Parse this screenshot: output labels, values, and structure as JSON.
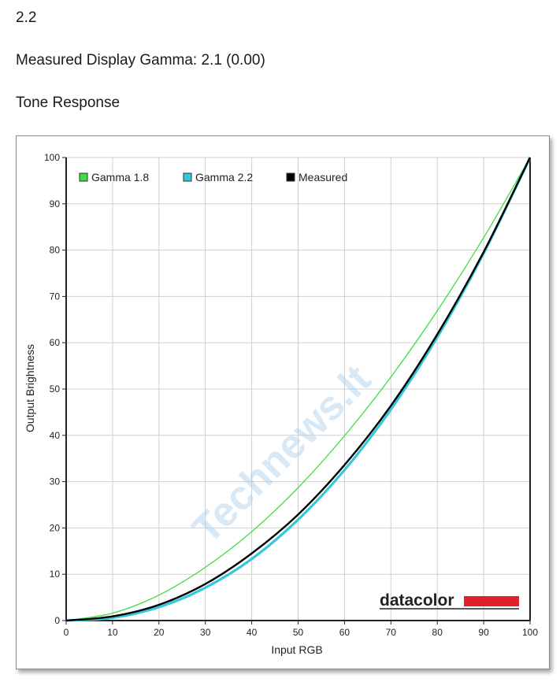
{
  "page": {
    "heading_value": "2.2",
    "measured_gamma": "Measured Display Gamma: 2.1 (0.00)",
    "section_title": "Tone Response"
  },
  "chart_data": {
    "type": "line",
    "xlabel": "Input RGB",
    "ylabel": "Output Brightness",
    "xlim": [
      0,
      100
    ],
    "ylim": [
      0,
      100
    ],
    "xticks": [
      0,
      10,
      20,
      30,
      40,
      50,
      60,
      70,
      80,
      90,
      100
    ],
    "yticks": [
      0,
      10,
      20,
      30,
      40,
      50,
      60,
      70,
      80,
      90,
      100
    ],
    "grid": true,
    "legend_position": "top-left",
    "x": [
      0,
      10,
      20,
      30,
      40,
      50,
      60,
      70,
      80,
      90,
      100
    ],
    "series": [
      {
        "name": "Gamma 1.8",
        "color": "#3fdc3f",
        "values": [
          0,
          1.6,
          5.5,
          11.5,
          19.2,
          28.7,
          39.9,
          52.6,
          66.9,
          82.7,
          100
        ]
      },
      {
        "name": "Gamma 2.2",
        "color": "#33c8dc",
        "values": [
          0,
          0.6,
          2.9,
          7.1,
          13.3,
          21.8,
          32.5,
          45.6,
          61.2,
          79.3,
          100
        ]
      },
      {
        "name": "Measured",
        "color": "#000000",
        "values": [
          0,
          0.9,
          3.4,
          7.9,
          14.5,
          22.9,
          33.6,
          46.4,
          61.8,
          79.6,
          100
        ]
      }
    ]
  },
  "branding": {
    "logo_text": "datacolor",
    "logo_accent": "#e0202a",
    "watermark": "Technews.lt"
  }
}
